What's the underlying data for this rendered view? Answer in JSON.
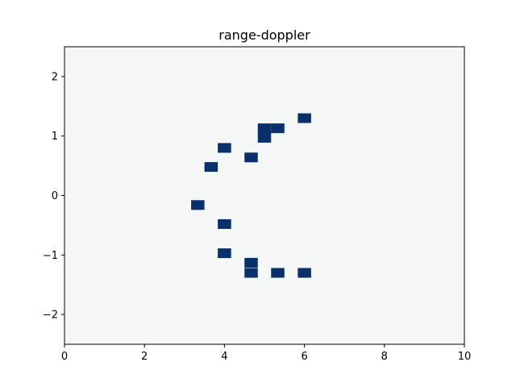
{
  "chart_data": {
    "type": "heatmap",
    "title": "range-doppler",
    "xlabel": "",
    "ylabel": "",
    "xlim": [
      0,
      10
    ],
    "ylim": [
      -2.5,
      2.5
    ],
    "x_ticks": [
      0,
      2,
      4,
      6,
      8,
      10
    ],
    "y_ticks": [
      -2,
      -1,
      0,
      1,
      2
    ],
    "x_tick_labels": [
      "0",
      "2",
      "4",
      "6",
      "8",
      "10"
    ],
    "y_tick_labels": [
      "−2",
      "−1",
      "0",
      "1",
      "2"
    ],
    "cell_size": [
      0.333,
      0.163
    ],
    "background_color": "#f5f7f7",
    "cell_color": "#08306b",
    "grid": false,
    "legend": "none",
    "cells": [
      {
        "x": 6.0,
        "y": 1.3
      },
      {
        "x": 5.0,
        "y": 1.13
      },
      {
        "x": 5.333,
        "y": 1.13
      },
      {
        "x": 5.0,
        "y": 0.97
      },
      {
        "x": 4.0,
        "y": 0.8
      },
      {
        "x": 4.667,
        "y": 0.64
      },
      {
        "x": 3.667,
        "y": 0.48
      },
      {
        "x": 3.333,
        "y": -0.16
      },
      {
        "x": 4.0,
        "y": -0.48
      },
      {
        "x": 4.0,
        "y": -0.97
      },
      {
        "x": 4.667,
        "y": -1.13
      },
      {
        "x": 4.667,
        "y": -1.3
      },
      {
        "x": 5.333,
        "y": -1.3
      },
      {
        "x": 6.0,
        "y": -1.3
      }
    ]
  }
}
